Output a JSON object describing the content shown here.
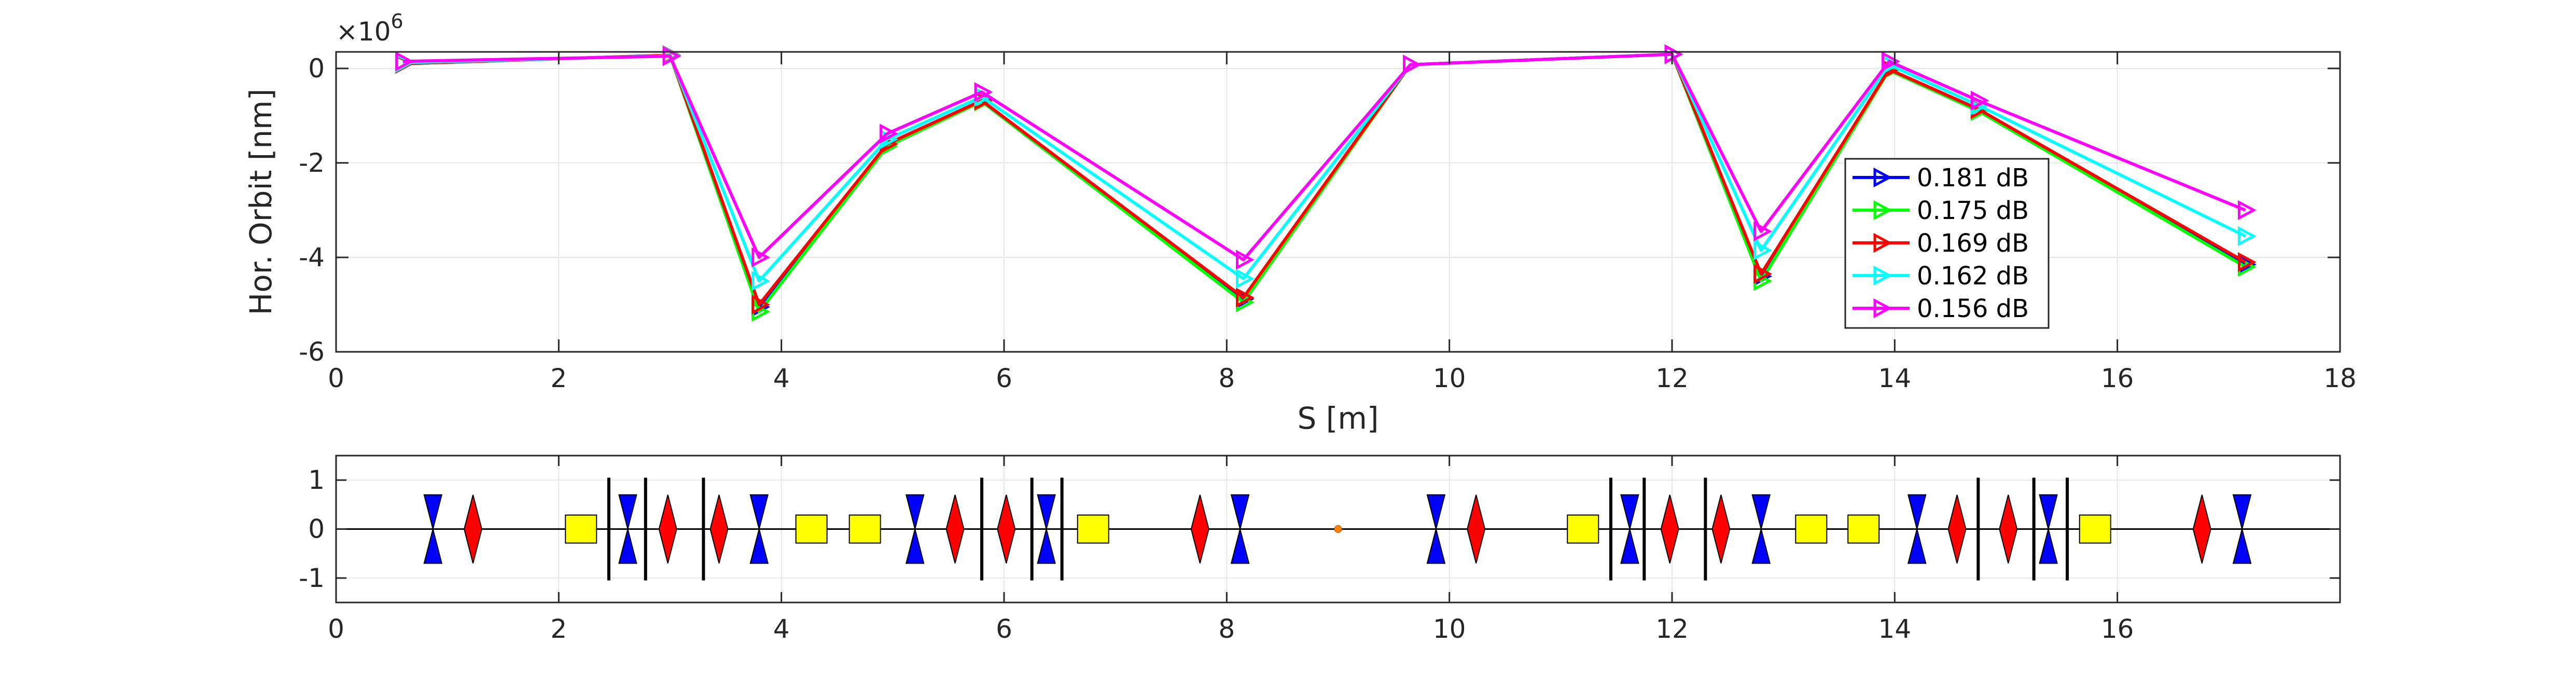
{
  "chart_data": [
    {
      "type": "line",
      "xlabel": "S [m]",
      "ylabel": "Hor. Orbit [nm]",
      "exponent_label": "×10",
      "exponent_value": "6",
      "xlim": [
        0,
        18
      ],
      "ylim": [
        -6,
        0.35
      ],
      "xticks": [
        0,
        2,
        4,
        6,
        8,
        10,
        12,
        14,
        16,
        18
      ],
      "yticks": [
        0,
        -2,
        -4,
        -6
      ],
      "ytick_labels": [
        "0",
        "-2",
        "-4",
        "-6"
      ],
      "grid": true,
      "legend_placement": "right",
      "x": [
        0.6,
        3.0,
        3.8,
        4.95,
        5.8,
        8.15,
        9.65,
        12.0,
        12.8,
        13.95,
        14.75,
        17.15
      ],
      "series": [
        {
          "name": "0.181 dB",
          "color": "#0000ff",
          "values": [
            0.1,
            0.28,
            -5.05,
            -1.6,
            -0.68,
            -4.88,
            0.08,
            0.3,
            -4.4,
            -0.02,
            -0.86,
            -4.15
          ]
        },
        {
          "name": "0.175 dB",
          "color": "#00ff00",
          "values": [
            0.1,
            0.28,
            -5.15,
            -1.65,
            -0.7,
            -4.95,
            0.08,
            0.3,
            -4.5,
            -0.04,
            -0.9,
            -4.2
          ]
        },
        {
          "name": "0.169 dB",
          "color": "#ff0000",
          "values": [
            0.1,
            0.28,
            -5.0,
            -1.6,
            -0.68,
            -4.85,
            0.08,
            0.3,
            -4.35,
            -0.02,
            -0.86,
            -4.1
          ]
        },
        {
          "name": "0.162 dB",
          "color": "#00ffff",
          "values": [
            0.12,
            0.27,
            -4.5,
            -1.5,
            -0.6,
            -4.45,
            0.08,
            0.3,
            -3.85,
            0.08,
            -0.78,
            -3.55
          ]
        },
        {
          "name": "0.156 dB",
          "color": "#ff00ff",
          "values": [
            0.15,
            0.26,
            -4.0,
            -1.38,
            -0.5,
            -4.05,
            0.08,
            0.3,
            -3.45,
            0.15,
            -0.68,
            -3.0
          ]
        }
      ]
    },
    {
      "type": "scatter",
      "xlim": [
        0,
        18
      ],
      "ylim": [
        -1.5,
        1.5
      ],
      "xticks": [
        0,
        2,
        4,
        6,
        8,
        10,
        12,
        14,
        16
      ],
      "yticks": [
        1,
        0,
        -1
      ],
      "ytick_labels": [
        "1",
        "0",
        "-1"
      ],
      "grid": true,
      "elements": [
        {
          "kind": "defocus_quad",
          "color": "#0000ff",
          "s": [
            0.87,
            2.62,
            3.8,
            5.2,
            6.38,
            8.12,
            9.88,
            11.62,
            12.8,
            14.2,
            15.38,
            17.12
          ]
        },
        {
          "kind": "focus_quad",
          "color": "#ff0000",
          "s": [
            1.23,
            2.98,
            3.44,
            5.56,
            6.02,
            7.76,
            10.24,
            11.98,
            12.44,
            14.56,
            15.02,
            16.76
          ]
        },
        {
          "kind": "dipole",
          "color": "#ffff00",
          "s": [
            2.2,
            4.27,
            4.75,
            6.8,
            11.2,
            13.25,
            13.72,
            15.8
          ]
        },
        {
          "kind": "marker",
          "color": "#000000",
          "s": [
            2.45,
            2.78,
            3.3,
            5.8,
            6.25,
            6.52,
            11.45,
            11.75,
            12.3,
            14.75,
            15.25,
            15.55
          ]
        },
        {
          "kind": "center",
          "color": "#ff8000",
          "s": [
            9.0
          ]
        }
      ]
    }
  ]
}
